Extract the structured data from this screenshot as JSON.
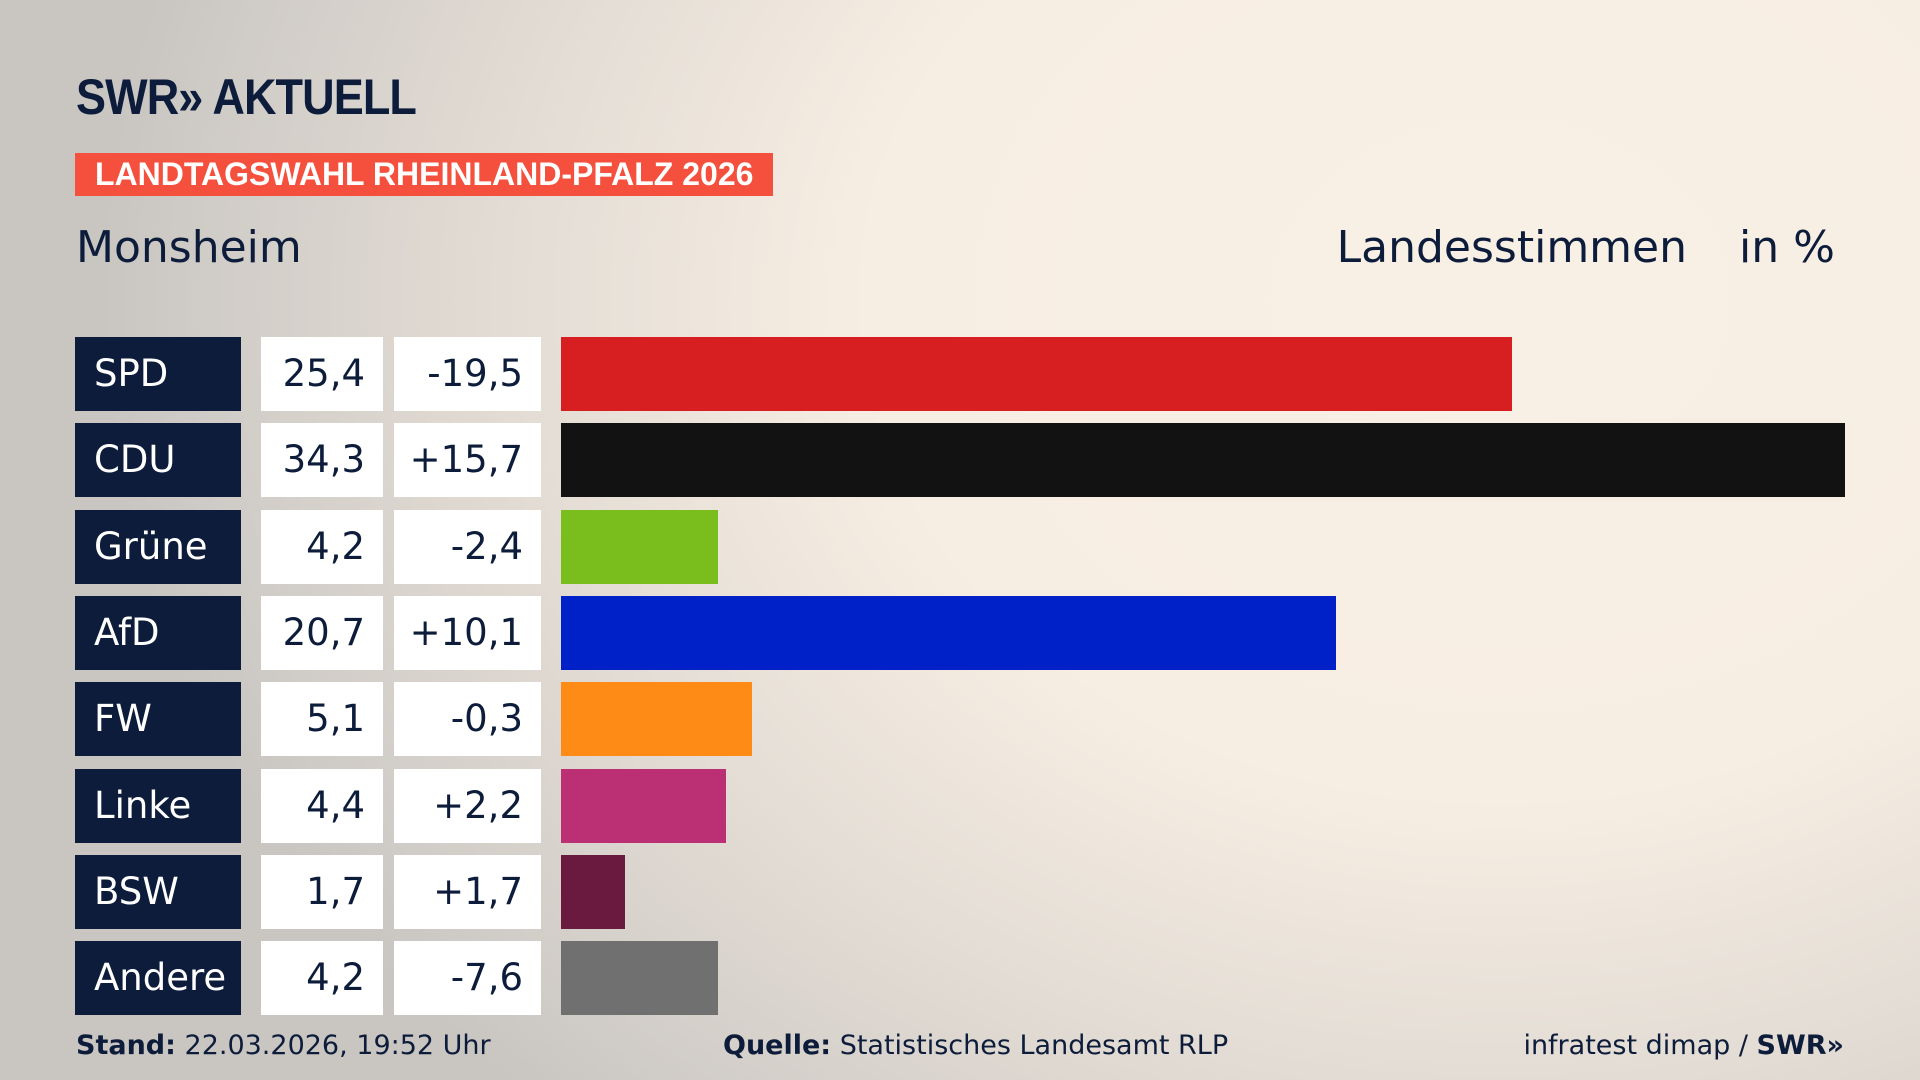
{
  "header": {
    "logo": "SWR» AKTUELL",
    "banner": "LANDTAGSWAHL RHEINLAND-PFALZ 2026",
    "region": "Monsheim",
    "vote_type": "Landesstimmen",
    "unit": "in %"
  },
  "colors": {
    "banner": "#f4503d",
    "label_bg": "#0c1c3a"
  },
  "chart_data": {
    "type": "bar",
    "orientation": "horizontal",
    "xlim": [
      0,
      34.3
    ],
    "categories": [
      "SPD",
      "CDU",
      "Grüne",
      "AfD",
      "FW",
      "Linke",
      "BSW",
      "Andere"
    ],
    "values": [
      25.4,
      34.3,
      4.2,
      20.7,
      5.1,
      4.4,
      1.7,
      4.2
    ],
    "value_labels": [
      "25,4",
      "34,3",
      "4,2",
      "20,7",
      "5,1",
      "4,4",
      "1,7",
      "4,2"
    ],
    "diff_labels": [
      "-19,5",
      "+15,7",
      "-2,4",
      "+10,1",
      "-0,3",
      "+2,2",
      "+1,7",
      "-7,6"
    ],
    "colors": [
      "#d71f21",
      "#121212",
      "#79be1c",
      "#0021c8",
      "#ff8b17",
      "#bb2f74",
      "#6a1a3e",
      "#707070"
    ]
  },
  "footer": {
    "stand_label": "Stand:",
    "stand_value": "22.03.2026, 19:52 Uhr",
    "source_label": "Quelle:",
    "source_value": "Statistisches Landesamt RLP",
    "credit": "infratest dimap / ",
    "credit_logo": "SWR»"
  }
}
